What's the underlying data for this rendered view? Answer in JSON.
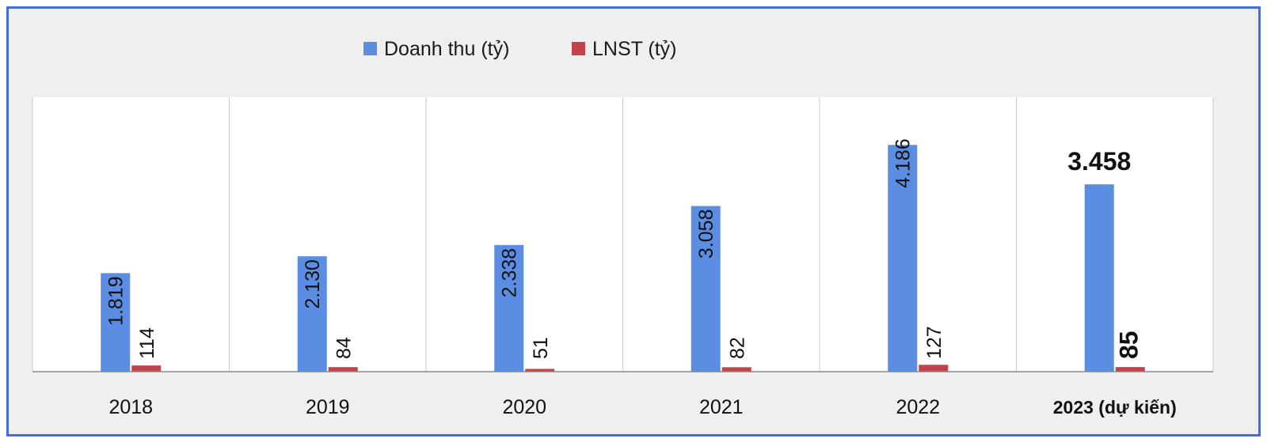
{
  "chart_data": {
    "type": "bar",
    "categories": [
      "2018",
      "2019",
      "2020",
      "2021",
      "2022",
      "2023 (dự kiến)"
    ],
    "series": [
      {
        "name": "Doanh thu (tỷ)",
        "color": "#5b8ee3",
        "values": [
          1819,
          2130,
          2338,
          3058,
          4186,
          3458
        ],
        "labels": [
          "1.819",
          "2.130",
          "2.338",
          "3.058",
          "4.186",
          "3.458"
        ]
      },
      {
        "name": "LNST (tỷ)",
        "color": "#c0434a",
        "values": [
          114,
          84,
          51,
          82,
          127,
          85
        ],
        "labels": [
          "114",
          "84",
          "51",
          "82",
          "127",
          "85"
        ]
      }
    ],
    "ylim": [
      0,
      5000
    ],
    "grid": "vertical",
    "legend_position": "top-center",
    "title": "",
    "xlabel": "",
    "ylabel": ""
  }
}
